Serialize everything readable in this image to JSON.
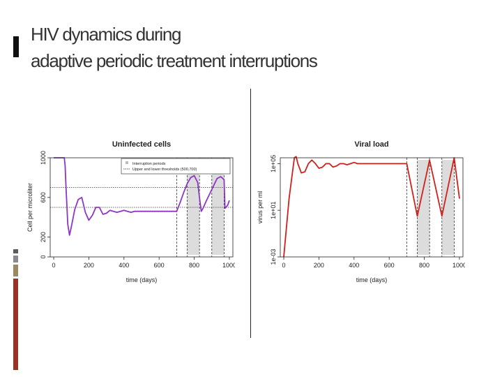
{
  "slide": {
    "title_line1": "HIV dynamics during",
    "title_line2": "adaptive periodic treatment interruptions",
    "colors": {
      "accent_bar": "#111111",
      "side_blocks": [
        "#5b5b5b",
        "#8a8a8a",
        "#9a8a60",
        "#9a3324"
      ],
      "divider": "#222222"
    }
  },
  "chart_data": [
    {
      "type": "line",
      "title": "Uninfected cells",
      "xlabel": "time (days)",
      "ylabel": "Cell per microliter",
      "xlim": [
        -20,
        1020
      ],
      "ylim": [
        0,
        1000
      ],
      "xticks": [
        0,
        200,
        400,
        600,
        800,
        1000
      ],
      "yticks": [
        0,
        200,
        600,
        1000
      ],
      "interruption_periods": [
        [
          760,
          830
        ],
        [
          900,
          970
        ]
      ],
      "thresholds": [
        500,
        700
      ],
      "legend": {
        "position": "top-right",
        "entries": [
          "Interruption periods",
          "Upper and lower thresholds (500,700)"
        ]
      },
      "series": [
        {
          "color": "#8e35c6",
          "x": [
            0,
            60,
            65,
            70,
            80,
            90,
            100,
            120,
            140,
            160,
            180,
            200,
            220,
            240,
            260,
            280,
            300,
            320,
            340,
            360,
            380,
            400,
            420,
            440,
            460,
            500,
            550,
            600,
            650,
            700,
            720,
            740,
            760,
            780,
            800,
            820,
            830,
            840,
            850,
            870,
            900,
            930,
            950,
            970,
            975,
            990,
            1000
          ],
          "y": [
            1000,
            1000,
            920,
            700,
            330,
            220,
            300,
            480,
            580,
            600,
            450,
            370,
            420,
            500,
            500,
            430,
            440,
            470,
            460,
            450,
            460,
            470,
            460,
            450,
            460,
            460,
            460,
            460,
            460,
            460,
            550,
            650,
            740,
            800,
            820,
            750,
            600,
            460,
            490,
            570,
            680,
            790,
            810,
            780,
            490,
            520,
            570
          ]
        }
      ]
    },
    {
      "type": "line",
      "title": "Viral load",
      "xlabel": "time (days)",
      "ylabel": "virus per ml",
      "y_scale": "log10",
      "xlim": [
        -20,
        1020
      ],
      "ylim_log10": [
        -3,
        5.5
      ],
      "xticks": [
        0,
        200,
        400,
        600,
        800,
        1000
      ],
      "yticks": [
        "1e-03",
        "1e+01",
        "1e+05"
      ],
      "interruption_periods": [
        [
          760,
          830
        ],
        [
          900,
          970
        ]
      ],
      "series": [
        {
          "color": "#d0201c",
          "x": [
            0,
            30,
            60,
            70,
            80,
            100,
            120,
            140,
            160,
            180,
            200,
            220,
            240,
            260,
            280,
            300,
            320,
            340,
            360,
            380,
            400,
            420,
            440,
            460,
            500,
            550,
            600,
            650,
            700,
            760,
            830,
            900,
            970,
            1000
          ],
          "y_log10": [
            -3,
            2,
            5.5,
            5.6,
            5.0,
            4.2,
            4.3,
            5.0,
            5.3,
            5.0,
            4.6,
            4.7,
            5.0,
            5.0,
            4.7,
            4.8,
            5.0,
            5.0,
            4.9,
            5.0,
            5.1,
            5.0,
            5.0,
            5.0,
            5.0,
            5.0,
            5.0,
            5.0,
            5.0,
            0.5,
            5.3,
            0.5,
            5.5,
            2.0
          ]
        }
      ]
    }
  ]
}
